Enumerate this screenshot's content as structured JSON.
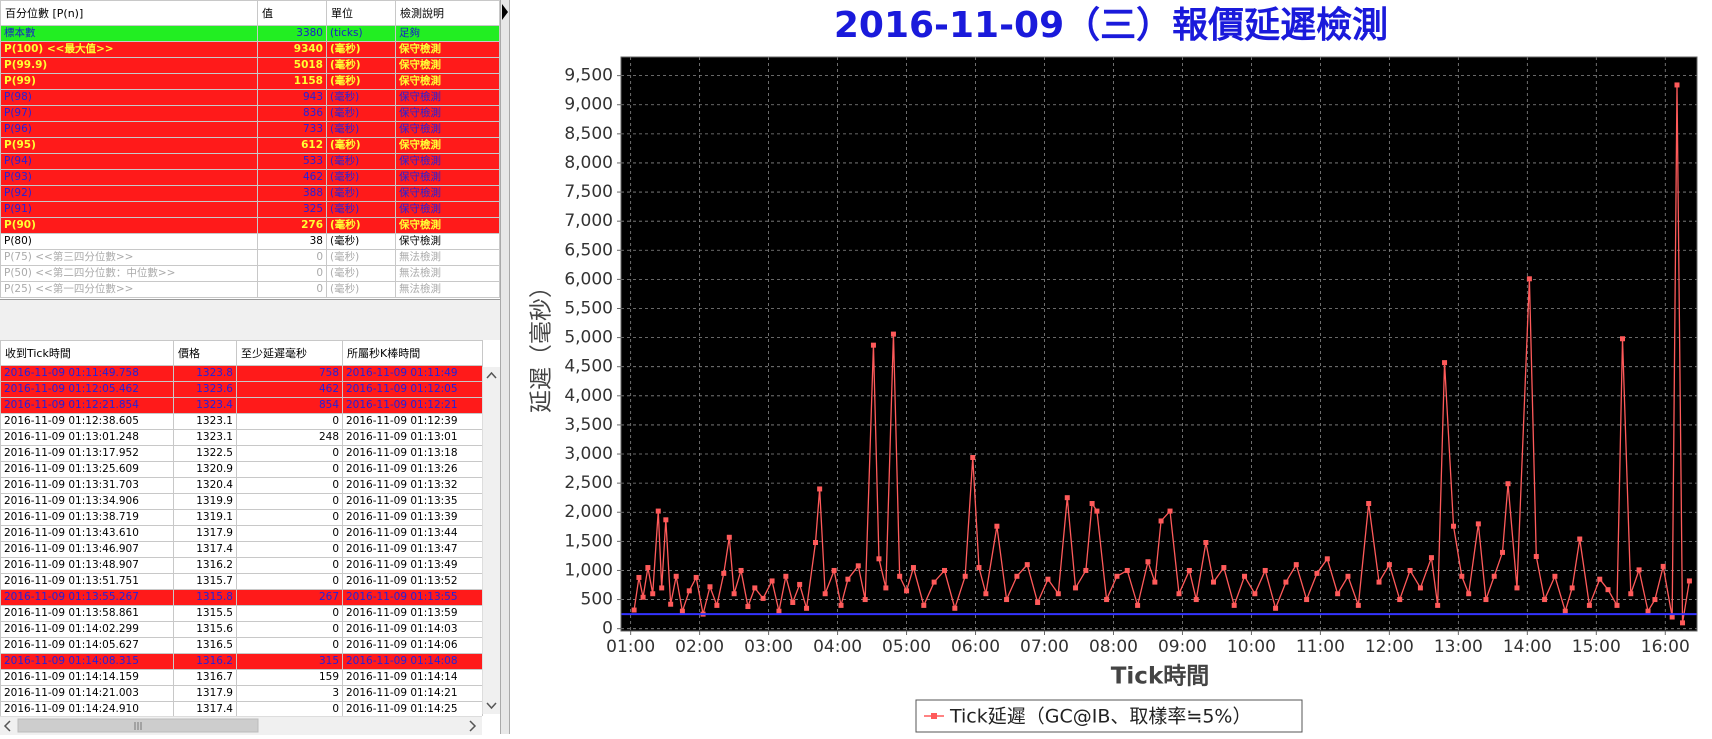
{
  "percentile_table": {
    "header": [
      "百分位數 [P(n)]",
      "值",
      "單位",
      "檢測說明"
    ],
    "rows": [
      [
        "標本數",
        "3380",
        "(ticks)",
        "足夠"
      ],
      [
        "P(100)  <<最大值>>",
        "9340",
        "(毫秒)",
        "保守檢測"
      ],
      [
        "P(99.9)",
        "5018",
        "(毫秒)",
        "保守檢測"
      ],
      [
        "P(99)",
        "1158",
        "(毫秒)",
        "保守檢測"
      ],
      [
        "P(98)",
        "943",
        "(毫秒)",
        "保守檢測"
      ],
      [
        "P(97)",
        "836",
        "(毫秒)",
        "保守檢測"
      ],
      [
        "P(96)",
        "733",
        "(毫秒)",
        "保守檢測"
      ],
      [
        "P(95)",
        "612",
        "(毫秒)",
        "保守檢測"
      ],
      [
        "P(94)",
        "533",
        "(毫秒)",
        "保守檢測"
      ],
      [
        "P(93)",
        "462",
        "(毫秒)",
        "保守檢測"
      ],
      [
        "P(92)",
        "388",
        "(毫秒)",
        "保守檢測"
      ],
      [
        "P(91)",
        "325",
        "(毫秒)",
        "保守檢測"
      ],
      [
        "P(90)",
        "276",
        "(毫秒)",
        "保守檢測"
      ],
      [
        "P(80)",
        "38",
        "(毫秒)",
        "保守檢測"
      ],
      [
        "P(75)  <<第三四分位數>>",
        "0",
        "(毫秒)",
        "無法檢測"
      ],
      [
        "P(50)  <<第二四分位數：中位數>>",
        "0",
        "(毫秒)",
        "無法檢測"
      ],
      [
        "P(25)  <<第一四分位數>>",
        "0",
        "(毫秒)",
        "無法檢測"
      ]
    ],
    "row_styles": [
      {
        "bg": "#22ee22",
        "fg": "#1a1acc",
        "bold": false
      },
      {
        "bg": "#ff1a1a",
        "fg": "#ffff33",
        "bold": true
      },
      {
        "bg": "#ff1a1a",
        "fg": "#ffff33",
        "bold": true
      },
      {
        "bg": "#ff1a1a",
        "fg": "#ffff33",
        "bold": true
      },
      {
        "bg": "#ff1a1a",
        "fg": "#2222dd",
        "bold": false
      },
      {
        "bg": "#ff1a1a",
        "fg": "#2222dd",
        "bold": false
      },
      {
        "bg": "#ff1a1a",
        "fg": "#2222dd",
        "bold": false
      },
      {
        "bg": "#ff1a1a",
        "fg": "#ffff33",
        "bold": true
      },
      {
        "bg": "#ff1a1a",
        "fg": "#2222dd",
        "bold": false
      },
      {
        "bg": "#ff1a1a",
        "fg": "#2222dd",
        "bold": false
      },
      {
        "bg": "#ff1a1a",
        "fg": "#2222dd",
        "bold": false
      },
      {
        "bg": "#ff1a1a",
        "fg": "#2222dd",
        "bold": false
      },
      {
        "bg": "#ff1a1a",
        "fg": "#ffff33",
        "bold": true
      },
      {
        "bg": "#ffffff",
        "fg": "#000000",
        "bold": false
      },
      {
        "bg": "#ffffff",
        "fg": "#aaaaaa",
        "bold": false
      },
      {
        "bg": "#ffffff",
        "fg": "#aaaaaa",
        "bold": false
      },
      {
        "bg": "#ffffff",
        "fg": "#aaaaaa",
        "bold": false
      }
    ]
  },
  "tick_table": {
    "header": [
      "收到Tick時間",
      "價格",
      "至少延遲毫秒",
      "所屬秒K棒時間"
    ],
    "rows": [
      [
        "2016-11-09 01:11:49.758",
        "1323.8",
        "758",
        "2016-11-09 01:11:49"
      ],
      [
        "2016-11-09 01:12:05.462",
        "1323.6",
        "462",
        "2016-11-09 01:12:05"
      ],
      [
        "2016-11-09 01:12:21.854",
        "1323.4",
        "854",
        "2016-11-09 01:12:21"
      ],
      [
        "2016-11-09 01:12:38.605",
        "1323.1",
        "0",
        "2016-11-09 01:12:39"
      ],
      [
        "2016-11-09 01:13:01.248",
        "1323.1",
        "248",
        "2016-11-09 01:13:01"
      ],
      [
        "2016-11-09 01:13:17.952",
        "1322.5",
        "0",
        "2016-11-09 01:13:18"
      ],
      [
        "2016-11-09 01:13:25.609",
        "1320.9",
        "0",
        "2016-11-09 01:13:26"
      ],
      [
        "2016-11-09 01:13:31.703",
        "1320.4",
        "0",
        "2016-11-09 01:13:32"
      ],
      [
        "2016-11-09 01:13:34.906",
        "1319.9",
        "0",
        "2016-11-09 01:13:35"
      ],
      [
        "2016-11-09 01:13:38.719",
        "1319.1",
        "0",
        "2016-11-09 01:13:39"
      ],
      [
        "2016-11-09 01:13:43.610",
        "1317.9",
        "0",
        "2016-11-09 01:13:44"
      ],
      [
        "2016-11-09 01:13:46.907",
        "1317.4",
        "0",
        "2016-11-09 01:13:47"
      ],
      [
        "2016-11-09 01:13:48.907",
        "1316.2",
        "0",
        "2016-11-09 01:13:49"
      ],
      [
        "2016-11-09 01:13:51.751",
        "1315.7",
        "0",
        "2016-11-09 01:13:52"
      ],
      [
        "2016-11-09 01:13:55.267",
        "1315.8",
        "267",
        "2016-11-09 01:13:55"
      ],
      [
        "2016-11-09 01:13:58.861",
        "1315.5",
        "0",
        "2016-11-09 01:13:59"
      ],
      [
        "2016-11-09 01:14:02.299",
        "1315.6",
        "0",
        "2016-11-09 01:14:03"
      ],
      [
        "2016-11-09 01:14:05.627",
        "1316.5",
        "0",
        "2016-11-09 01:14:06"
      ],
      [
        "2016-11-09 01:14:08.315",
        "1316.2",
        "315",
        "2016-11-09 01:14:08"
      ],
      [
        "2016-11-09 01:14:14.159",
        "1316.7",
        "159",
        "2016-11-09 01:14:14"
      ],
      [
        "2016-11-09 01:14:21.003",
        "1317.9",
        "3",
        "2016-11-09 01:14:21"
      ],
      [
        "2016-11-09 01:14:24.910",
        "1317.4",
        "0",
        "2016-11-09 01:14:25"
      ]
    ],
    "highlight_rows": [
      0,
      1,
      2,
      14,
      18
    ]
  },
  "chart_data": {
    "type": "line",
    "title": "2016-11-09（三）報價延遲檢測",
    "y_label": "延遲（毫秒）",
    "x_label": "Tick時間",
    "x": [
      1.05,
      1.12,
      1.18,
      1.25,
      1.32,
      1.4,
      1.45,
      1.51,
      1.58,
      1.66,
      1.75,
      1.85,
      1.95,
      2.05,
      2.15,
      2.25,
      2.35,
      2.43,
      2.5,
      2.6,
      2.7,
      2.8,
      2.92,
      3.05,
      3.15,
      3.25,
      3.35,
      3.45,
      3.55,
      3.68,
      3.74,
      3.82,
      3.95,
      4.05,
      4.15,
      4.3,
      4.4,
      4.52,
      4.6,
      4.7,
      4.81,
      4.9,
      5.0,
      5.1,
      5.25,
      5.4,
      5.55,
      5.7,
      5.85,
      5.96,
      6.05,
      6.15,
      6.31,
      6.45,
      6.6,
      6.75,
      6.9,
      7.05,
      7.2,
      7.33,
      7.45,
      7.6,
      7.69,
      7.76,
      7.9,
      8.05,
      8.2,
      8.35,
      8.5,
      8.6,
      8.69,
      8.82,
      8.95,
      9.1,
      9.2,
      9.34,
      9.45,
      9.6,
      9.75,
      9.9,
      10.05,
      10.2,
      10.35,
      10.5,
      10.65,
      10.8,
      10.95,
      11.1,
      11.25,
      11.4,
      11.55,
      11.7,
      11.85,
      12.0,
      12.15,
      12.3,
      12.45,
      12.61,
      12.7,
      12.8,
      12.93,
      13.05,
      13.15,
      13.29,
      13.4,
      13.52,
      13.64,
      13.72,
      13.85,
      14.03,
      14.13,
      14.25,
      14.4,
      14.55,
      14.65,
      14.76,
      14.9,
      15.05,
      15.17,
      15.3,
      15.38,
      15.5,
      15.62,
      15.75,
      15.85,
      15.97,
      16.1,
      16.17,
      16.25,
      16.35
    ],
    "series": [
      {
        "name": "Tick延遲（GC@IB、取樣率≒5%）",
        "color": "#ff5a5a",
        "values": [
          320,
          880,
          540,
          1050,
          600,
          2020,
          700,
          1870,
          420,
          900,
          300,
          650,
          880,
          250,
          720,
          400,
          950,
          1570,
          600,
          1000,
          380,
          700,
          520,
          820,
          300,
          900,
          450,
          760,
          350,
          1480,
          2400,
          600,
          1000,
          400,
          850,
          1080,
          500,
          4870,
          1200,
          700,
          5060,
          900,
          650,
          1050,
          400,
          800,
          1000,
          350,
          900,
          2940,
          1050,
          600,
          1760,
          500,
          900,
          1100,
          450,
          850,
          600,
          2250,
          700,
          1000,
          2150,
          2020,
          500,
          900,
          1000,
          400,
          1150,
          800,
          1850,
          2020,
          600,
          1000,
          500,
          1480,
          800,
          1050,
          400,
          900,
          600,
          1000,
          350,
          800,
          1100,
          500,
          950,
          1200,
          600,
          900,
          400,
          2150,
          800,
          1100,
          500,
          1000,
          700,
          1220,
          400,
          4570,
          1760,
          900,
          600,
          1800,
          500,
          900,
          1310,
          2490,
          700,
          6010,
          1240,
          500,
          900,
          300,
          700,
          1540,
          400,
          850,
          670,
          400,
          4980,
          600,
          1010,
          300,
          500,
          1070,
          200,
          9340,
          100,
          820
        ]
      }
    ],
    "reference_line": {
      "value": 250,
      "color": "#3333ff"
    },
    "xlim": [
      0.86,
      16.46
    ],
    "ylim": [
      -40,
      9820
    ],
    "xticks": [
      {
        "value": 1,
        "label": "01:00"
      },
      {
        "value": 2,
        "label": "02:00"
      },
      {
        "value": 3,
        "label": "03:00"
      },
      {
        "value": 4,
        "label": "04:00"
      },
      {
        "value": 5,
        "label": "05:00"
      },
      {
        "value": 6,
        "label": "06:00"
      },
      {
        "value": 7,
        "label": "07:00"
      },
      {
        "value": 8,
        "label": "08:00"
      },
      {
        "value": 9,
        "label": "09:00"
      },
      {
        "value": 10,
        "label": "10:00"
      },
      {
        "value": 11,
        "label": "11:00"
      },
      {
        "value": 12,
        "label": "12:00"
      },
      {
        "value": 13,
        "label": "13:00"
      },
      {
        "value": 14,
        "label": "14:00"
      },
      {
        "value": 15,
        "label": "15:00"
      },
      {
        "value": 16,
        "label": "16:00"
      }
    ],
    "yticks": [
      0,
      {
        "value": 500,
        "label": "500"
      },
      {
        "value": 1000,
        "label": "1,000"
      },
      {
        "value": 1500,
        "label": "1,500"
      },
      {
        "value": 2000,
        "label": "2,000"
      },
      {
        "value": 2500,
        "label": "2,500"
      },
      {
        "value": 3000,
        "label": "3,000"
      },
      {
        "value": 3500,
        "label": "3,500"
      },
      {
        "value": 4000,
        "label": "4,000"
      },
      {
        "value": 4500,
        "label": "4,500"
      },
      {
        "value": 5000,
        "label": "5,000"
      },
      {
        "value": 5500,
        "label": "5,500"
      },
      {
        "value": 6000,
        "label": "6,000"
      },
      {
        "value": 6500,
        "label": "6,500"
      },
      {
        "value": 7000,
        "label": "7,000"
      },
      {
        "value": 7500,
        "label": "7,500"
      },
      {
        "value": 8000,
        "label": "8,000"
      },
      {
        "value": 8500,
        "label": "8,500"
      },
      {
        "value": 9000,
        "label": "9,000"
      },
      {
        "value": 9500,
        "label": "9,500"
      }
    ],
    "grid": true,
    "plot_background": "#000000",
    "title_color": "#1a1adb"
  }
}
